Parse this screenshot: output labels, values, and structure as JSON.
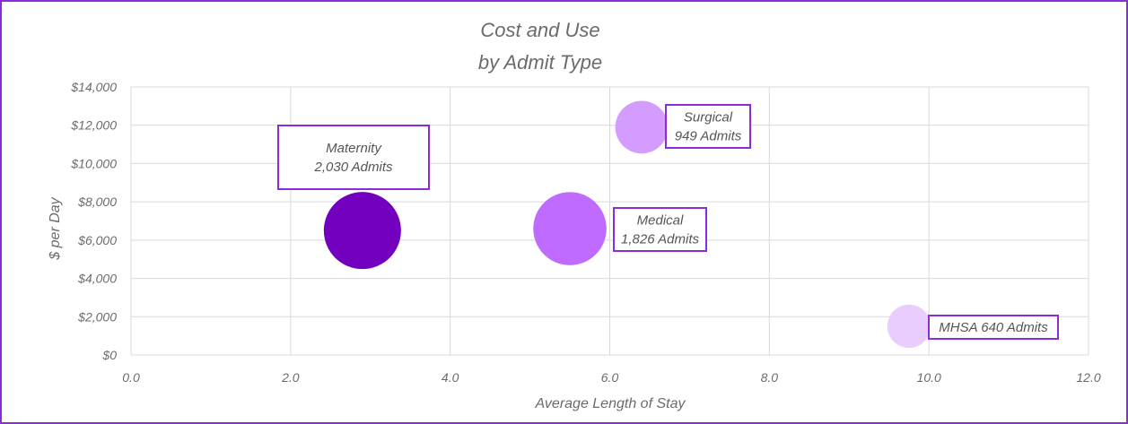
{
  "chart_data": {
    "type": "bubble",
    "title": [
      "Cost and Use",
      "by Admit Type"
    ],
    "xlabel": "Average Length of Stay",
    "ylabel": "$ per Day",
    "xlim": [
      0,
      12
    ],
    "ylim": [
      0,
      14000
    ],
    "x_ticks": [
      "0.0",
      "2.0",
      "4.0",
      "6.0",
      "8.0",
      "10.0",
      "12.0"
    ],
    "y_ticks": [
      "$0",
      "$2,000",
      "$4,000",
      "$6,000",
      "$8,000",
      "$10,000",
      "$12,000",
      "$14,000"
    ],
    "grid": true,
    "frame_color": "#8B2BD9",
    "points": [
      {
        "x": 2.9,
        "y": 6500,
        "size": 2030,
        "color": "#7300BF",
        "label_lines": [
          "Maternity",
          "2,030 Admits"
        ]
      },
      {
        "x": 5.5,
        "y": 6600,
        "size": 1826,
        "color": "#BF6BFF",
        "label_lines": [
          "Medical",
          "1,826 Admits"
        ]
      },
      {
        "x": 6.4,
        "y": 11900,
        "size": 949,
        "color": "#D59CFF",
        "label_lines": [
          "Surgical",
          "949 Admits"
        ]
      },
      {
        "x": 9.75,
        "y": 1500,
        "size": 640,
        "color": "#E9CDFF",
        "label_lines": [
          "MHSA 640 Admits"
        ]
      }
    ]
  }
}
